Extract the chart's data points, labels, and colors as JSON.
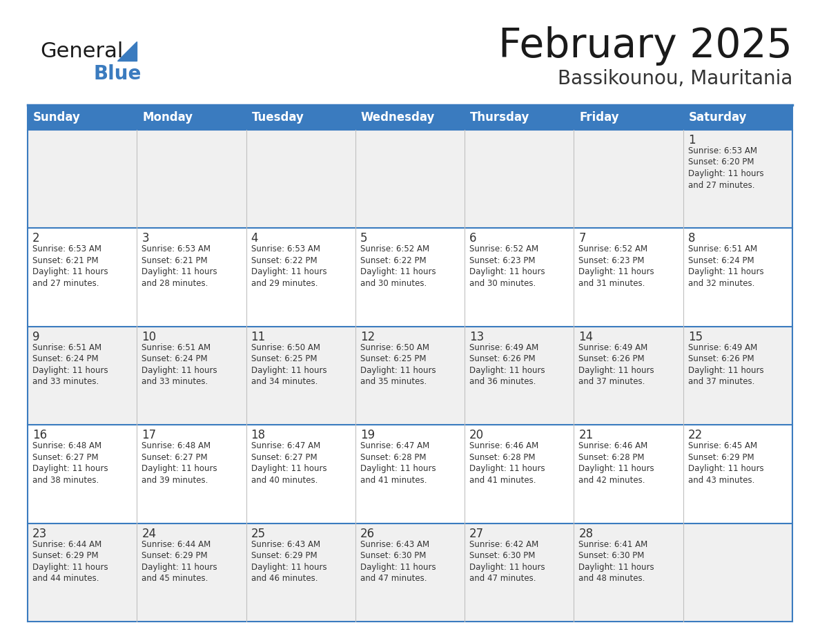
{
  "title": "February 2025",
  "subtitle": "Bassikounou, Mauritania",
  "days_of_week": [
    "Sunday",
    "Monday",
    "Tuesday",
    "Wednesday",
    "Thursday",
    "Friday",
    "Saturday"
  ],
  "header_bg": "#3a7bbf",
  "header_text": "#ffffff",
  "cell_bg_odd": "#f0f0f0",
  "cell_bg_even": "#ffffff",
  "text_color": "#333333",
  "border_color": "#3a7bbf",
  "calendar": [
    [
      null,
      null,
      null,
      null,
      null,
      null,
      {
        "day": 1,
        "sunrise": "6:53 AM",
        "sunset": "6:20 PM",
        "daylight": "11 hours",
        "daylight2": "and 27 minutes."
      }
    ],
    [
      {
        "day": 2,
        "sunrise": "6:53 AM",
        "sunset": "6:21 PM",
        "daylight": "11 hours",
        "daylight2": "and 27 minutes."
      },
      {
        "day": 3,
        "sunrise": "6:53 AM",
        "sunset": "6:21 PM",
        "daylight": "11 hours",
        "daylight2": "and 28 minutes."
      },
      {
        "day": 4,
        "sunrise": "6:53 AM",
        "sunset": "6:22 PM",
        "daylight": "11 hours",
        "daylight2": "and 29 minutes."
      },
      {
        "day": 5,
        "sunrise": "6:52 AM",
        "sunset": "6:22 PM",
        "daylight": "11 hours",
        "daylight2": "and 30 minutes."
      },
      {
        "day": 6,
        "sunrise": "6:52 AM",
        "sunset": "6:23 PM",
        "daylight": "11 hours",
        "daylight2": "and 30 minutes."
      },
      {
        "day": 7,
        "sunrise": "6:52 AM",
        "sunset": "6:23 PM",
        "daylight": "11 hours",
        "daylight2": "and 31 minutes."
      },
      {
        "day": 8,
        "sunrise": "6:51 AM",
        "sunset": "6:24 PM",
        "daylight": "11 hours",
        "daylight2": "and 32 minutes."
      }
    ],
    [
      {
        "day": 9,
        "sunrise": "6:51 AM",
        "sunset": "6:24 PM",
        "daylight": "11 hours",
        "daylight2": "and 33 minutes."
      },
      {
        "day": 10,
        "sunrise": "6:51 AM",
        "sunset": "6:24 PM",
        "daylight": "11 hours",
        "daylight2": "and 33 minutes."
      },
      {
        "day": 11,
        "sunrise": "6:50 AM",
        "sunset": "6:25 PM",
        "daylight": "11 hours",
        "daylight2": "and 34 minutes."
      },
      {
        "day": 12,
        "sunrise": "6:50 AM",
        "sunset": "6:25 PM",
        "daylight": "11 hours",
        "daylight2": "and 35 minutes."
      },
      {
        "day": 13,
        "sunrise": "6:49 AM",
        "sunset": "6:26 PM",
        "daylight": "11 hours",
        "daylight2": "and 36 minutes."
      },
      {
        "day": 14,
        "sunrise": "6:49 AM",
        "sunset": "6:26 PM",
        "daylight": "11 hours",
        "daylight2": "and 37 minutes."
      },
      {
        "day": 15,
        "sunrise": "6:49 AM",
        "sunset": "6:26 PM",
        "daylight": "11 hours",
        "daylight2": "and 37 minutes."
      }
    ],
    [
      {
        "day": 16,
        "sunrise": "6:48 AM",
        "sunset": "6:27 PM",
        "daylight": "11 hours",
        "daylight2": "and 38 minutes."
      },
      {
        "day": 17,
        "sunrise": "6:48 AM",
        "sunset": "6:27 PM",
        "daylight": "11 hours",
        "daylight2": "and 39 minutes."
      },
      {
        "day": 18,
        "sunrise": "6:47 AM",
        "sunset": "6:27 PM",
        "daylight": "11 hours",
        "daylight2": "and 40 minutes."
      },
      {
        "day": 19,
        "sunrise": "6:47 AM",
        "sunset": "6:28 PM",
        "daylight": "11 hours",
        "daylight2": "and 41 minutes."
      },
      {
        "day": 20,
        "sunrise": "6:46 AM",
        "sunset": "6:28 PM",
        "daylight": "11 hours",
        "daylight2": "and 41 minutes."
      },
      {
        "day": 21,
        "sunrise": "6:46 AM",
        "sunset": "6:28 PM",
        "daylight": "11 hours",
        "daylight2": "and 42 minutes."
      },
      {
        "day": 22,
        "sunrise": "6:45 AM",
        "sunset": "6:29 PM",
        "daylight": "11 hours",
        "daylight2": "and 43 minutes."
      }
    ],
    [
      {
        "day": 23,
        "sunrise": "6:44 AM",
        "sunset": "6:29 PM",
        "daylight": "11 hours",
        "daylight2": "and 44 minutes."
      },
      {
        "day": 24,
        "sunrise": "6:44 AM",
        "sunset": "6:29 PM",
        "daylight": "11 hours",
        "daylight2": "and 45 minutes."
      },
      {
        "day": 25,
        "sunrise": "6:43 AM",
        "sunset": "6:29 PM",
        "daylight": "11 hours",
        "daylight2": "and 46 minutes."
      },
      {
        "day": 26,
        "sunrise": "6:43 AM",
        "sunset": "6:30 PM",
        "daylight": "11 hours",
        "daylight2": "and 47 minutes."
      },
      {
        "day": 27,
        "sunrise": "6:42 AM",
        "sunset": "6:30 PM",
        "daylight": "11 hours",
        "daylight2": "and 47 minutes."
      },
      {
        "day": 28,
        "sunrise": "6:41 AM",
        "sunset": "6:30 PM",
        "daylight": "11 hours",
        "daylight2": "and 48 minutes."
      },
      null
    ]
  ],
  "figsize": [
    11.88,
    9.18
  ],
  "dpi": 100
}
